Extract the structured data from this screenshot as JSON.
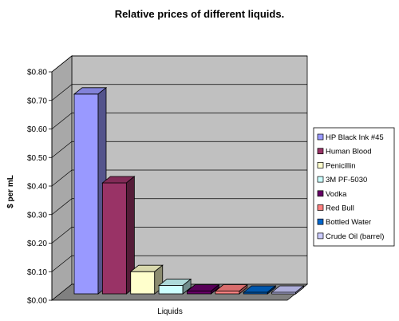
{
  "chart_data": {
    "type": "bar",
    "title": "Relative prices of different liquids.",
    "xlabel": "Liquids",
    "ylabel": "$ per mL",
    "ylim": [
      0,
      0.8
    ],
    "yticks": [
      "$0.00",
      "$0.10",
      "$0.20",
      "$0.30",
      "$0.40",
      "$0.50",
      "$0.60",
      "$0.70",
      "$0.80"
    ],
    "grid": true,
    "legend_position": "right",
    "series": [
      {
        "name": "HP Black Ink #45",
        "value": 0.72,
        "color": "#9999ff"
      },
      {
        "name": "Human Blood",
        "value": 0.4,
        "color": "#993366"
      },
      {
        "name": "Penicillin",
        "value": 0.08,
        "color": "#ffffcc"
      },
      {
        "name": "3M PF-5030",
        "value": 0.03,
        "color": "#ccffff"
      },
      {
        "name": "Vodka",
        "value": 0.01,
        "color": "#660066"
      },
      {
        "name": "Red Bull",
        "value": 0.01,
        "color": "#ff8080"
      },
      {
        "name": "Bottled Water",
        "value": 0.002,
        "color": "#0066cc"
      },
      {
        "name": "Crude Oil (barrel)",
        "value": 0.0005,
        "color": "#ccccff"
      }
    ]
  }
}
